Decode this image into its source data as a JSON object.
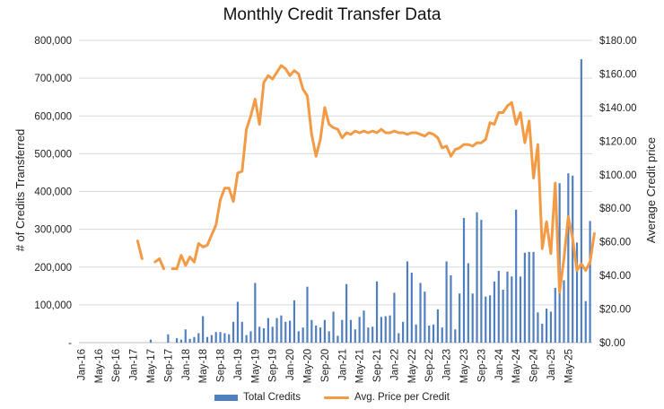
{
  "chart_data": {
    "type": "bar",
    "title": "Monthly Credit Transfer Data",
    "ylabel": "# of Credits Transferred",
    "y2label": "Average Credit price",
    "ylim": [
      0,
      800000
    ],
    "y2lim": [
      0,
      180
    ],
    "yticks": [
      "-",
      "100,000",
      "200,000",
      "300,000",
      "400,000",
      "500,000",
      "600,000",
      "700,000",
      "800,000"
    ],
    "y2ticks": [
      "$0.00",
      "$20.00",
      "$40.00",
      "$60.00",
      "$80.00",
      "$100.00",
      "$120.00",
      "$140.00",
      "$160.00",
      "$180.00"
    ],
    "xticks": [
      "Jan-16",
      "May-16",
      "Sep-16",
      "Jan-17",
      "May-17",
      "Sep-17",
      "Jan-18",
      "May-18",
      "Sep-18",
      "Jan-19",
      "May-19",
      "Sep-19",
      "Jan-20",
      "May-20",
      "Sep-20",
      "Jan-21",
      "May-21",
      "Sep-21",
      "Jan-22",
      "May-22",
      "Sep-22",
      "Jan-23",
      "May-23",
      "Sep-23",
      "Jan-24",
      "May-24",
      "Sep-24",
      "Jan-25",
      "May-25"
    ],
    "grid": "horizontal",
    "legend_position": "bottom",
    "colors": {
      "bars": "#4f7fbf",
      "line": "#f39a45"
    },
    "start_month": "2016-01",
    "series": [
      {
        "name": "Total Credits",
        "kind": "bar",
        "values": [
          0,
          0,
          0,
          0,
          0,
          0,
          0,
          0,
          0,
          0,
          0,
          0,
          0,
          0,
          0,
          0,
          8000,
          0,
          0,
          0,
          22000,
          0,
          12000,
          8000,
          35000,
          10000,
          15000,
          25000,
          70000,
          15000,
          20000,
          28000,
          28000,
          25000,
          22000,
          55000,
          108000,
          55000,
          20000,
          30000,
          158000,
          42000,
          38000,
          65000,
          42000,
          65000,
          72000,
          55000,
          58000,
          112000,
          30000,
          40000,
          148000,
          60000,
          45000,
          40000,
          60000,
          30000,
          82000,
          18000,
          60000,
          155000,
          60000,
          35000,
          68000,
          85000,
          40000,
          42000,
          162000,
          68000,
          70000,
          72000,
          132000,
          25000,
          55000,
          215000,
          185000,
          48000,
          158000,
          135000,
          45000,
          48000,
          88000,
          40000,
          215000,
          178000,
          35000,
          130000,
          330000,
          210000,
          130000,
          345000,
          325000,
          122000,
          125000,
          162000,
          190000,
          140000,
          188000,
          175000,
          352000,
          175000,
          238000,
          240000,
          240000,
          80000,
          50000,
          90000,
          82000,
          145000,
          422000,
          165000,
          448000,
          442000,
          265000,
          750000,
          110000,
          322000
        ]
      },
      {
        "name": "Avg. Price per Credit",
        "kind": "line",
        "values": [
          null,
          null,
          null,
          null,
          null,
          null,
          null,
          null,
          null,
          null,
          null,
          null,
          null,
          60.5,
          50,
          null,
          null,
          48,
          50,
          44,
          null,
          44,
          44,
          52,
          46,
          51,
          48,
          59,
          57,
          58,
          64,
          70,
          85,
          92,
          92,
          84,
          101,
          102,
          127,
          135,
          145,
          130,
          155,
          159,
          157,
          161,
          165,
          163,
          159,
          162,
          160,
          151,
          147,
          124,
          111,
          121,
          140,
          130,
          128,
          127,
          122,
          125,
          124,
          126,
          125,
          126,
          125,
          126,
          125,
          127,
          125,
          125,
          126,
          125,
          125,
          124,
          125,
          125,
          124,
          123,
          125,
          124,
          122,
          116,
          117,
          111,
          115,
          116,
          118,
          118,
          117,
          119,
          119,
          121,
          131,
          130,
          137,
          137,
          141,
          143,
          130,
          137,
          119,
          132,
          98,
          118,
          56,
          72,
          53,
          95,
          30,
          50,
          75,
          62,
          43,
          47,
          43,
          48,
          65
        ]
      }
    ]
  }
}
